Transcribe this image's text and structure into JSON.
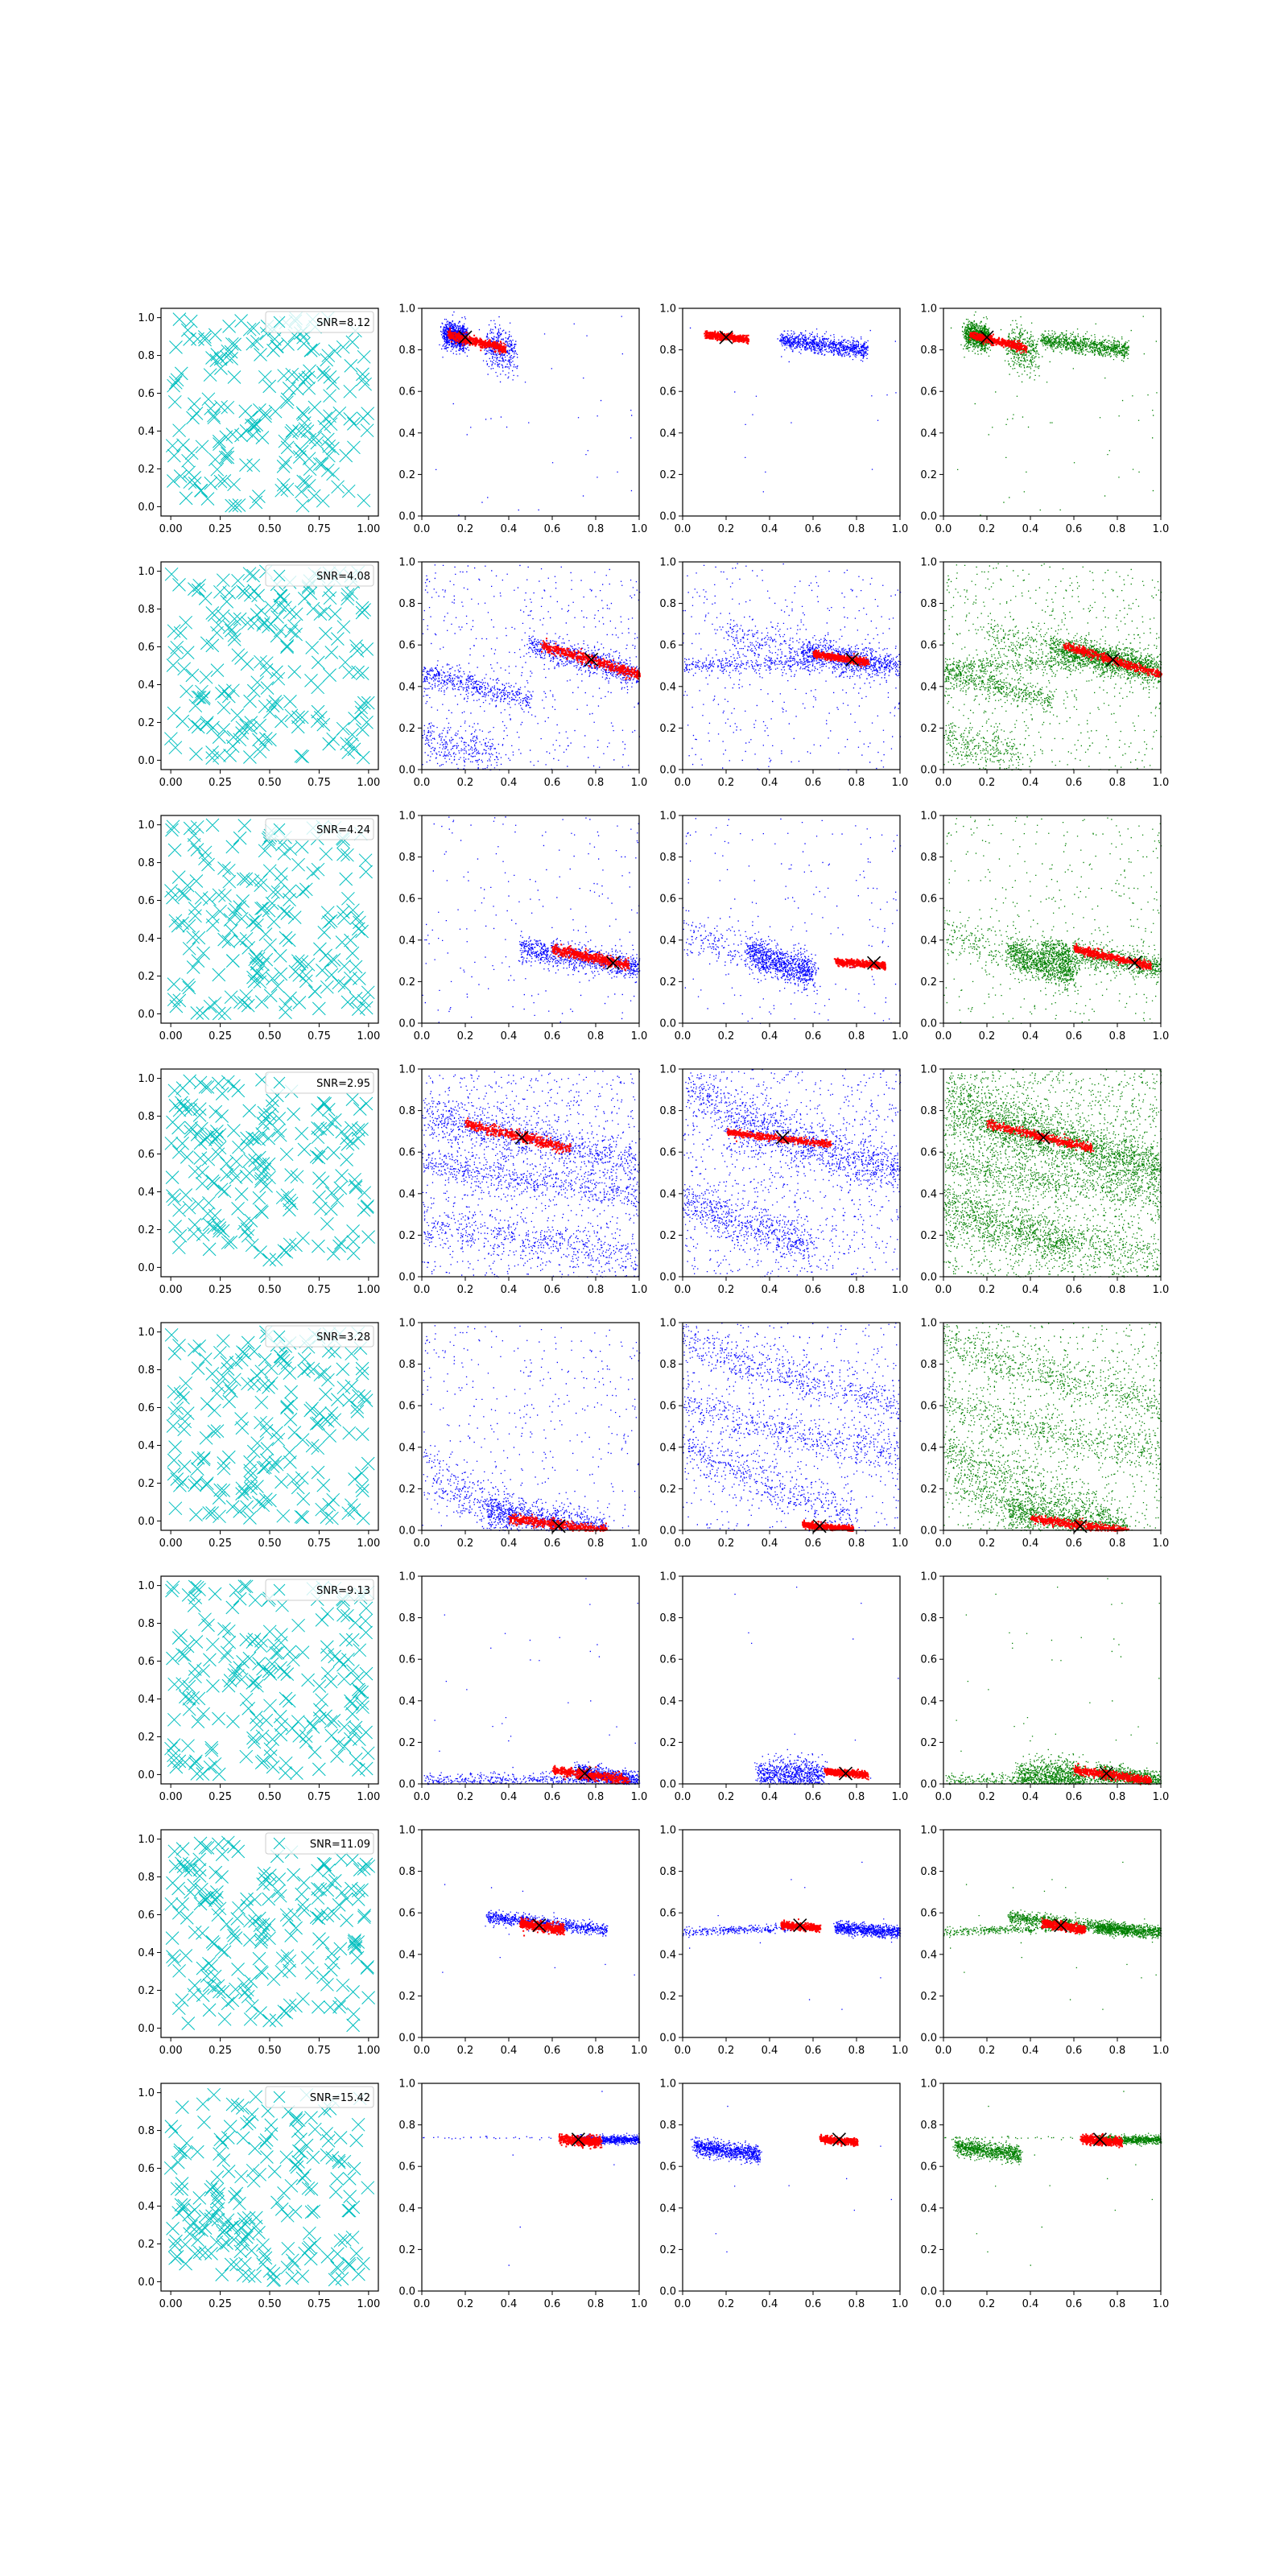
{
  "figure": {
    "colors": {
      "cross": "#00bfbf",
      "blue": "#0000ff",
      "red": "#ff0000",
      "green": "#008000",
      "marker": "#000000"
    },
    "left_column_ticks": [
      "0.00",
      "0.25",
      "0.50",
      "0.75",
      "1.00"
    ],
    "left_column_yticks": [
      "0.0",
      "0.2",
      "0.4",
      "0.6",
      "0.8",
      "1.0"
    ],
    "scatter_ticks": [
      "0.0",
      "0.2",
      "0.4",
      "0.6",
      "0.8",
      "1.0"
    ]
  },
  "chart_data": [
    {
      "row": 1,
      "type": "scatter",
      "legend": "SNR=8.12",
      "xlim": [
        0,
        1
      ],
      "ylim": [
        0,
        1
      ],
      "grid": false,
      "red_cluster": {
        "from": [
          0.12,
          0.875
        ],
        "to": [
          0.38,
          0.81
        ]
      },
      "marker": [
        0.2,
        0.86
      ],
      "blue_panel_1": [
        [
          0.05,
          0.89,
          0.2,
          0.04
        ],
        [
          0.28,
          0.84,
          0.12,
          0.04
        ]
      ],
      "blue_panel_2": [
        [
          0.5,
          0.84,
          0.12,
          0.03
        ],
        [
          0.72,
          0.81,
          0.1,
          0.02
        ]
      ],
      "panel_2_red": {
        "from": [
          0.1,
          0.875
        ],
        "to": [
          0.3,
          0.855
        ]
      }
    },
    {
      "row": 2,
      "type": "scatter",
      "legend": "SNR=4.08",
      "xlim": [
        0,
        1
      ],
      "ylim": [
        0,
        1
      ],
      "grid": false,
      "red_cluster": {
        "from": [
          0.55,
          0.6
        ],
        "to": [
          1.0,
          0.46
        ]
      },
      "marker": [
        0.78,
        0.53
      ],
      "panel_2_red": {
        "from": [
          0.6,
          0.56
        ],
        "to": [
          0.85,
          0.52
        ]
      }
    },
    {
      "row": 3,
      "type": "scatter",
      "legend": "SNR=4.24",
      "xlim": [
        0,
        1
      ],
      "ylim": [
        0,
        1
      ],
      "grid": false,
      "red_cluster": {
        "from": [
          0.6,
          0.36
        ],
        "to": [
          0.95,
          0.28
        ]
      },
      "marker": [
        0.88,
        0.29
      ],
      "panel_2_red": {
        "from": [
          0.7,
          0.3
        ],
        "to": [
          0.93,
          0.28
        ]
      }
    },
    {
      "row": 4,
      "type": "scatter",
      "legend": "SNR=2.95",
      "xlim": [
        0,
        1
      ],
      "ylim": [
        0,
        1
      ],
      "grid": false,
      "red_cluster": {
        "from": [
          0.2,
          0.74
        ],
        "to": [
          0.68,
          0.62
        ]
      },
      "marker": [
        0.46,
        0.67
      ],
      "panel_2_red": {
        "from": [
          0.2,
          0.7
        ],
        "to": [
          0.68,
          0.64
        ]
      }
    },
    {
      "row": 5,
      "type": "scatter",
      "legend": "SNR=3.28",
      "xlim": [
        0,
        1
      ],
      "ylim": [
        0,
        1
      ],
      "grid": false,
      "red_cluster": {
        "from": [
          0.4,
          0.06
        ],
        "to": [
          0.85,
          0.0
        ]
      },
      "marker": [
        0.63,
        0.02
      ],
      "panel_2_red": {
        "from": [
          0.55,
          0.03
        ],
        "to": [
          0.78,
          0.01
        ]
      }
    },
    {
      "row": 6,
      "type": "scatter",
      "legend": "SNR=9.13",
      "xlim": [
        0,
        1
      ],
      "ylim": [
        0,
        1
      ],
      "grid": false,
      "red_cluster": {
        "from": [
          0.6,
          0.07
        ],
        "to": [
          0.95,
          0.02
        ]
      },
      "marker": [
        0.75,
        0.05
      ],
      "panel_2_red": {
        "from": [
          0.65,
          0.065
        ],
        "to": [
          0.85,
          0.045
        ]
      }
    },
    {
      "row": 7,
      "type": "scatter",
      "legend": "SNR=11.09",
      "xlim": [
        0,
        1
      ],
      "ylim": [
        0,
        1
      ],
      "grid": false,
      "red_cluster": {
        "from": [
          0.45,
          0.555
        ],
        "to": [
          0.65,
          0.52
        ]
      },
      "marker": [
        0.54,
        0.54
      ],
      "panel_2_red": {
        "from": [
          0.45,
          0.545
        ],
        "to": [
          0.63,
          0.53
        ]
      }
    },
    {
      "row": 8,
      "type": "scatter",
      "legend": "SNR=15.42",
      "xlim": [
        0,
        1
      ],
      "ylim": [
        0,
        1
      ],
      "grid": false,
      "red_cluster": {
        "from": [
          0.63,
          0.735
        ],
        "to": [
          0.82,
          0.72
        ]
      },
      "marker": [
        0.72,
        0.73
      ],
      "panel_2_red": {
        "from": [
          0.63,
          0.735
        ],
        "to": [
          0.8,
          0.72
        ]
      }
    }
  ]
}
